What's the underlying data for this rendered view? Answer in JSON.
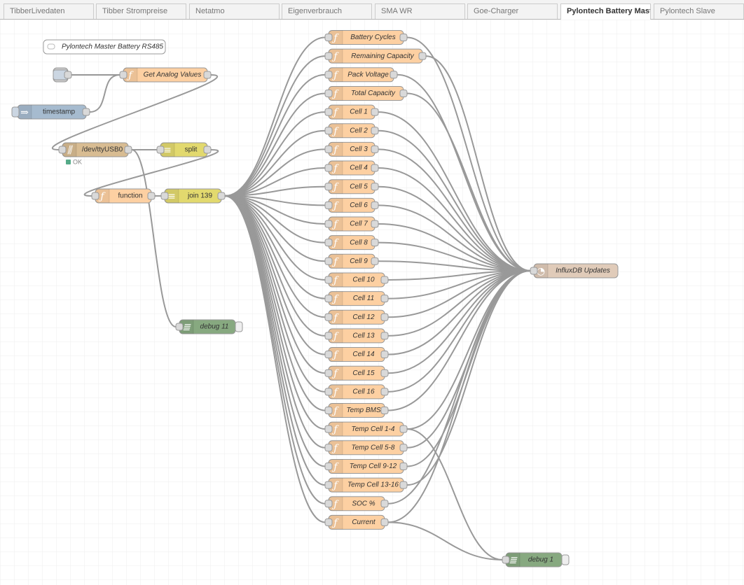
{
  "tabs": [
    "TibberLivedaten",
    "Tibber Strompreise",
    "Netatmo",
    "Eigenverbrauch",
    "SMA WR",
    "Goe-Charger",
    "Pylontech Battery Master",
    "Pylontech Slave"
  ],
  "nodes": [
    {
      "label": "Pylontech Master Battery RS485"
    },
    {
      "label": "Get Analog Values"
    },
    {
      "label": "timestamp"
    },
    {
      "label": "/dev/ttyUSB0",
      "status": "OK"
    },
    {
      "label": "split"
    },
    {
      "label": "function"
    },
    {
      "label": "join 139"
    },
    {
      "label": "debug 11"
    },
    {
      "label": "Battery Cycles"
    },
    {
      "label": "Remaining Capacity"
    },
    {
      "label": "Pack Voltage"
    },
    {
      "label": "Total Capacity"
    },
    {
      "label": "Cell 1"
    },
    {
      "label": "Cell 2"
    },
    {
      "label": "Cell 3"
    },
    {
      "label": "Cell 4"
    },
    {
      "label": "Cell 5"
    },
    {
      "label": "Cell 6"
    },
    {
      "label": "Cell 7"
    },
    {
      "label": "Cell 8"
    },
    {
      "label": "Cell 9"
    },
    {
      "label": "Cell 10"
    },
    {
      "label": "Cell 11"
    },
    {
      "label": "Cell 12"
    },
    {
      "label": "Cell 13"
    },
    {
      "label": "Cell 14"
    },
    {
      "label": "Cell 15"
    },
    {
      "label": "Cell 16"
    },
    {
      "label": "Temp BMS"
    },
    {
      "label": "Temp Cell 1-4"
    },
    {
      "label": "Temp Cell 5-8"
    },
    {
      "label": "Temp Cell 9-12"
    },
    {
      "label": "Temp Cell 13-16"
    },
    {
      "label": "SOC %"
    },
    {
      "label": "Current"
    },
    {
      "label": "InfluxDB Updates"
    },
    {
      "label": "debug 1"
    }
  ]
}
